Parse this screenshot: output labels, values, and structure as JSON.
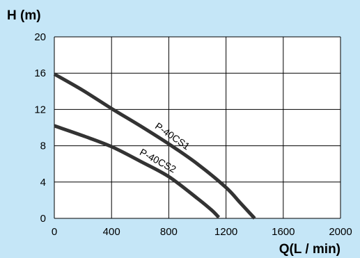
{
  "chart_data": {
    "type": "line",
    "title": "",
    "xlabel": "Q(L / min)",
    "ylabel": "H (m)",
    "xlim": [
      0,
      2000
    ],
    "ylim": [
      0,
      20
    ],
    "x_ticks": [
      "0",
      "400",
      "800",
      "1200",
      "1600",
      "2000"
    ],
    "y_ticks": [
      "0",
      "4",
      "8",
      "12",
      "16",
      "20"
    ],
    "grid": true,
    "legend": "none",
    "colors": {
      "background": "#c5e6f7",
      "plot_background": "#ffffff",
      "curve": "#333333",
      "grid": "#000000"
    },
    "series": [
      {
        "name": "P-40CS1",
        "label": "P-40CS1",
        "x": [
          0,
          200,
          400,
          600,
          800,
          1000,
          1200,
          1300,
          1400
        ],
        "y": [
          15.9,
          14.1,
          12.1,
          10.2,
          8.2,
          6.0,
          3.4,
          1.7,
          0.0
        ]
      },
      {
        "name": "P-40CS2",
        "label": "P-40CS2",
        "x": [
          0,
          200,
          400,
          600,
          800,
          1000,
          1100,
          1150
        ],
        "y": [
          10.2,
          9.1,
          7.9,
          6.3,
          4.6,
          2.2,
          0.9,
          0.1
        ]
      }
    ]
  }
}
